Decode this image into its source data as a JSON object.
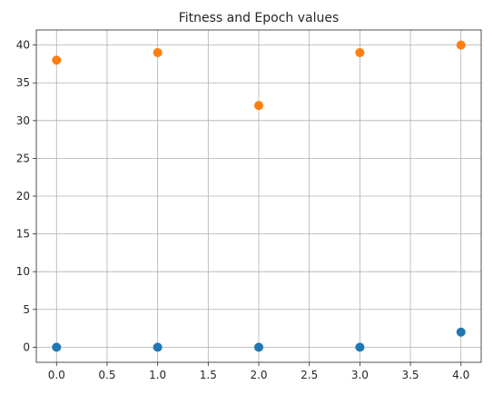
{
  "chart_data": {
    "type": "scatter",
    "title": "Fitness and Epoch values",
    "xlabel": "",
    "ylabel": "",
    "xlim": [
      -0.2,
      4.2
    ],
    "ylim": [
      -2.0,
      42.0
    ],
    "x_ticks": [
      "0.0",
      "0.5",
      "1.0",
      "1.5",
      "2.0",
      "2.5",
      "3.0",
      "3.5",
      "4.0"
    ],
    "y_ticks": [
      "0",
      "5",
      "10",
      "15",
      "20",
      "25",
      "30",
      "35",
      "40"
    ],
    "grid": true,
    "series": [
      {
        "color": "#1f77b4",
        "x": [
          0,
          1,
          2,
          3,
          4
        ],
        "y": [
          0,
          0,
          0,
          0,
          2
        ]
      },
      {
        "color": "#ff7f0e",
        "x": [
          0,
          1,
          2,
          3,
          4
        ],
        "y": [
          38,
          39,
          32,
          39,
          40
        ]
      }
    ]
  }
}
